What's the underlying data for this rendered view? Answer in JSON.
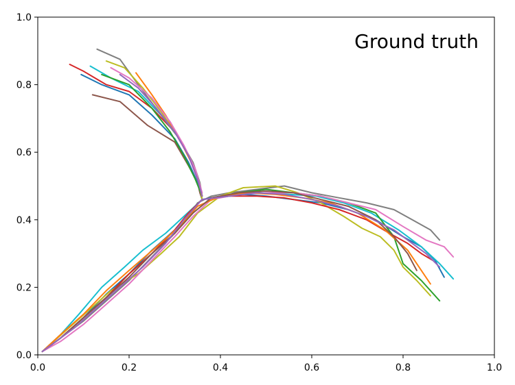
{
  "chart_data": {
    "type": "line",
    "title": "Ground truth",
    "xlabel": "",
    "ylabel": "",
    "xlim": [
      0.0,
      1.0
    ],
    "ylim": [
      0.0,
      1.0
    ],
    "xticks": [
      "0.0",
      "0.2",
      "0.4",
      "0.6",
      "0.8",
      "1.0"
    ],
    "yticks": [
      "0.0",
      "0.2",
      "0.4",
      "0.6",
      "0.8",
      "1.0"
    ],
    "grid": false,
    "legend": "none",
    "colors": [
      "#1f77b4",
      "#ff7f0e",
      "#2ca02c",
      "#d62728",
      "#9467bd",
      "#8c564b",
      "#e377c2",
      "#7f7f7f",
      "#bcbd22",
      "#17becf"
    ],
    "series": [
      {
        "color": "#8c564b",
        "x": [
          0.12,
          0.18,
          0.24,
          0.3,
          0.33,
          0.35,
          0.355,
          0.36
        ],
        "y": [
          0.77,
          0.75,
          0.68,
          0.63,
          0.56,
          0.51,
          0.48,
          0.46
        ]
      },
      {
        "color": "#d62728",
        "x": [
          0.07,
          0.1,
          0.15,
          0.2,
          0.25,
          0.3,
          0.33,
          0.35,
          0.36
        ],
        "y": [
          0.86,
          0.84,
          0.8,
          0.78,
          0.73,
          0.66,
          0.59,
          0.52,
          0.47
        ]
      },
      {
        "color": "#1f77b4",
        "x": [
          0.095,
          0.14,
          0.2,
          0.25,
          0.3,
          0.33,
          0.35,
          0.36
        ],
        "y": [
          0.83,
          0.8,
          0.77,
          0.71,
          0.64,
          0.57,
          0.51,
          0.47
        ]
      },
      {
        "color": "#17becf",
        "x": [
          0.115,
          0.16,
          0.22,
          0.27,
          0.31,
          0.34,
          0.355,
          0.36
        ],
        "y": [
          0.855,
          0.82,
          0.78,
          0.71,
          0.64,
          0.56,
          0.5,
          0.46
        ]
      },
      {
        "color": "#2ca02c",
        "x": [
          0.14,
          0.2,
          0.25,
          0.29,
          0.32,
          0.345,
          0.36
        ],
        "y": [
          0.83,
          0.8,
          0.73,
          0.66,
          0.59,
          0.52,
          0.47
        ]
      },
      {
        "color": "#7f7f7f",
        "x": [
          0.13,
          0.18,
          0.22,
          0.27,
          0.31,
          0.34,
          0.355,
          0.36
        ],
        "y": [
          0.905,
          0.875,
          0.8,
          0.71,
          0.64,
          0.57,
          0.51,
          0.47
        ]
      },
      {
        "color": "#bcbd22",
        "x": [
          0.15,
          0.19,
          0.23,
          0.27,
          0.31,
          0.34,
          0.355,
          0.36
        ],
        "y": [
          0.87,
          0.85,
          0.79,
          0.72,
          0.64,
          0.56,
          0.5,
          0.46
        ]
      },
      {
        "color": "#ff7f0e",
        "x": [
          0.215,
          0.25,
          0.28,
          0.31,
          0.34,
          0.355,
          0.36
        ],
        "y": [
          0.835,
          0.77,
          0.71,
          0.64,
          0.56,
          0.5,
          0.47
        ]
      },
      {
        "color": "#e377c2",
        "x": [
          0.16,
          0.2,
          0.25,
          0.29,
          0.32,
          0.345,
          0.36
        ],
        "y": [
          0.85,
          0.82,
          0.76,
          0.69,
          0.62,
          0.55,
          0.48
        ]
      },
      {
        "color": "#9467bd",
        "x": [
          0.18,
          0.22,
          0.26,
          0.3,
          0.33,
          0.35,
          0.36
        ],
        "y": [
          0.83,
          0.79,
          0.73,
          0.66,
          0.59,
          0.52,
          0.47
        ]
      },
      {
        "color": "#7f7f7f",
        "x": [
          0.01,
          0.05,
          0.1,
          0.15,
          0.2,
          0.25,
          0.3,
          0.33,
          0.35,
          0.38,
          0.42,
          0.48,
          0.54,
          0.6,
          0.66,
          0.72,
          0.78,
          0.82,
          0.86,
          0.88
        ],
        "y": [
          0.01,
          0.05,
          0.1,
          0.16,
          0.22,
          0.29,
          0.36,
          0.41,
          0.45,
          0.47,
          0.48,
          0.49,
          0.5,
          0.48,
          0.465,
          0.45,
          0.43,
          0.4,
          0.37,
          0.34
        ]
      },
      {
        "color": "#1f77b4",
        "x": [
          0.01,
          0.05,
          0.1,
          0.15,
          0.2,
          0.25,
          0.3,
          0.33,
          0.36,
          0.4,
          0.45,
          0.5,
          0.56,
          0.62,
          0.68,
          0.74,
          0.8,
          0.84,
          0.87,
          0.89
        ],
        "y": [
          0.01,
          0.05,
          0.11,
          0.18,
          0.24,
          0.31,
          0.37,
          0.42,
          0.46,
          0.47,
          0.475,
          0.47,
          0.46,
          0.45,
          0.43,
          0.4,
          0.35,
          0.32,
          0.28,
          0.23
        ]
      },
      {
        "color": "#17becf",
        "x": [
          0.01,
          0.05,
          0.09,
          0.14,
          0.19,
          0.23,
          0.28,
          0.32,
          0.36,
          0.42,
          0.48,
          0.55,
          0.61,
          0.67,
          0.73,
          0.79,
          0.84,
          0.88,
          0.91
        ],
        "y": [
          0.01,
          0.06,
          0.12,
          0.2,
          0.26,
          0.31,
          0.36,
          0.41,
          0.46,
          0.47,
          0.48,
          0.475,
          0.47,
          0.45,
          0.42,
          0.37,
          0.32,
          0.27,
          0.225
        ]
      },
      {
        "color": "#2ca02c",
        "x": [
          0.01,
          0.05,
          0.1,
          0.15,
          0.2,
          0.25,
          0.3,
          0.34,
          0.38,
          0.44,
          0.5,
          0.56,
          0.62,
          0.68,
          0.74,
          0.78,
          0.8,
          0.84,
          0.88
        ],
        "y": [
          0.01,
          0.05,
          0.11,
          0.17,
          0.24,
          0.3,
          0.36,
          0.42,
          0.465,
          0.48,
          0.49,
          0.48,
          0.47,
          0.45,
          0.42,
          0.35,
          0.27,
          0.22,
          0.16
        ]
      },
      {
        "color": "#bcbd22",
        "x": [
          0.01,
          0.06,
          0.11,
          0.16,
          0.22,
          0.27,
          0.31,
          0.35,
          0.4,
          0.45,
          0.52,
          0.57,
          0.62,
          0.67,
          0.71,
          0.75,
          0.78,
          0.8,
          0.83,
          0.86
        ],
        "y": [
          0.01,
          0.07,
          0.13,
          0.19,
          0.24,
          0.3,
          0.35,
          0.42,
          0.47,
          0.495,
          0.5,
          0.48,
          0.45,
          0.41,
          0.375,
          0.35,
          0.31,
          0.26,
          0.22,
          0.175
        ]
      },
      {
        "color": "#d62728",
        "x": [
          0.01,
          0.05,
          0.1,
          0.15,
          0.2,
          0.25,
          0.3,
          0.33,
          0.36,
          0.42,
          0.48,
          0.54,
          0.6,
          0.66,
          0.72,
          0.77,
          0.81,
          0.84,
          0.865
        ],
        "y": [
          0.01,
          0.05,
          0.11,
          0.17,
          0.24,
          0.3,
          0.37,
          0.42,
          0.46,
          0.47,
          0.47,
          0.465,
          0.45,
          0.43,
          0.4,
          0.36,
          0.33,
          0.3,
          0.28
        ]
      },
      {
        "color": "#e377c2",
        "x": [
          0.01,
          0.05,
          0.1,
          0.15,
          0.2,
          0.25,
          0.3,
          0.34,
          0.38,
          0.44,
          0.5,
          0.56,
          0.62,
          0.68,
          0.74,
          0.8,
          0.85,
          0.89,
          0.91
        ],
        "y": [
          0.01,
          0.04,
          0.09,
          0.15,
          0.21,
          0.28,
          0.35,
          0.41,
          0.46,
          0.475,
          0.48,
          0.48,
          0.47,
          0.45,
          0.43,
          0.38,
          0.34,
          0.32,
          0.29
        ]
      },
      {
        "color": "#ff7f0e",
        "x": [
          0.01,
          0.05,
          0.1,
          0.15,
          0.2,
          0.26,
          0.31,
          0.35,
          0.4,
          0.46,
          0.52,
          0.58,
          0.64,
          0.7,
          0.76,
          0.81,
          0.84,
          0.86
        ],
        "y": [
          0.01,
          0.06,
          0.12,
          0.19,
          0.25,
          0.32,
          0.38,
          0.44,
          0.47,
          0.48,
          0.475,
          0.465,
          0.45,
          0.42,
          0.37,
          0.31,
          0.25,
          0.21
        ]
      },
      {
        "color": "#8c564b",
        "x": [
          0.01,
          0.05,
          0.1,
          0.15,
          0.2,
          0.25,
          0.3,
          0.34,
          0.38,
          0.44,
          0.5,
          0.56,
          0.62,
          0.68,
          0.74,
          0.78,
          0.81,
          0.83
        ],
        "y": [
          0.01,
          0.05,
          0.11,
          0.17,
          0.23,
          0.3,
          0.36,
          0.42,
          0.465,
          0.48,
          0.485,
          0.48,
          0.46,
          0.44,
          0.4,
          0.35,
          0.3,
          0.25
        ]
      },
      {
        "color": "#9467bd",
        "x": [
          0.01,
          0.04,
          0.08,
          0.13,
          0.18,
          0.23,
          0.28,
          0.32,
          0.36,
          0.42,
          0.48,
          0.54,
          0.6,
          0.66,
          0.72,
          0.78,
          0.82,
          0.85,
          0.88
        ],
        "y": [
          0.01,
          0.04,
          0.08,
          0.14,
          0.2,
          0.26,
          0.33,
          0.4,
          0.46,
          0.47,
          0.48,
          0.475,
          0.46,
          0.44,
          0.41,
          0.37,
          0.33,
          0.3,
          0.26
        ]
      }
    ]
  }
}
